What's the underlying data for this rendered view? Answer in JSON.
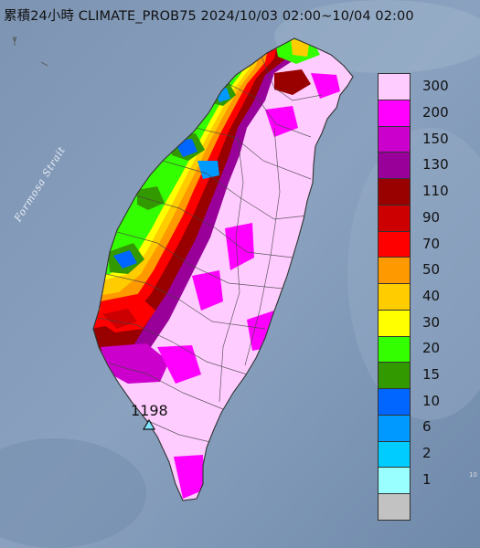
{
  "title": "累積24小時 CLIMATE_PROB75 2024/10/03 02:00~10/04 02:00",
  "water_label": "Formosa Strait",
  "station": {
    "value": "1198"
  },
  "edge_text": "10",
  "legend": [
    {
      "label": "300",
      "color": "#ffccff"
    },
    {
      "label": "200",
      "color": "#ff00ff"
    },
    {
      "label": "150",
      "color": "#cc00cc"
    },
    {
      "label": "130",
      "color": "#990099"
    },
    {
      "label": "110",
      "color": "#990000"
    },
    {
      "label": "90",
      "color": "#cc0000"
    },
    {
      "label": "70",
      "color": "#ff0000"
    },
    {
      "label": "50",
      "color": "#ff9900"
    },
    {
      "label": "40",
      "color": "#ffcc00"
    },
    {
      "label": "30",
      "color": "#ffff00"
    },
    {
      "label": "20",
      "color": "#33ff00"
    },
    {
      "label": "15",
      "color": "#339900"
    },
    {
      "label": "10",
      "color": "#0066ff"
    },
    {
      "label": "6",
      "color": "#0099ff"
    },
    {
      "label": "2",
      "color": "#00ccff"
    },
    {
      "label": "1",
      "color": "#99ffff"
    },
    {
      "label": "",
      "color": "#c2c2c2"
    }
  ]
}
